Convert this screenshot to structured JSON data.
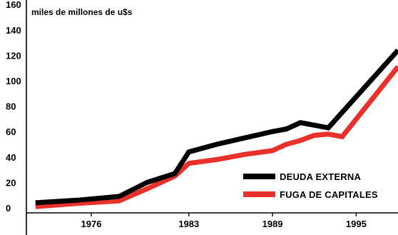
{
  "chart_data": {
    "type": "line",
    "title": "",
    "ylabel": "miles de millones de u$s",
    "xlabel": "",
    "ylim": [
      0,
      160
    ],
    "xlim": [
      1971.5,
      1998
    ],
    "y_ticks": [
      0,
      20,
      40,
      60,
      80,
      100,
      120,
      140,
      160
    ],
    "x_ticks": [
      1976,
      1983,
      1989,
      1995
    ],
    "grid": false,
    "legend_position": "bottom-right",
    "series": [
      {
        "name": "DEUDA EXTERNA",
        "color": "#000000",
        "points": [
          {
            "x": 1972,
            "y": 4
          },
          {
            "x": 1975,
            "y": 6
          },
          {
            "x": 1978,
            "y": 9
          },
          {
            "x": 1980,
            "y": 20
          },
          {
            "x": 1982,
            "y": 27
          },
          {
            "x": 1983,
            "y": 44
          },
          {
            "x": 1985,
            "y": 50
          },
          {
            "x": 1987,
            "y": 55
          },
          {
            "x": 1989,
            "y": 60
          },
          {
            "x": 1990,
            "y": 62
          },
          {
            "x": 1991,
            "y": 67
          },
          {
            "x": 1993,
            "y": 63
          },
          {
            "x": 1998,
            "y": 124
          }
        ]
      },
      {
        "name": "FUGA DE CAPITALES",
        "color": "#e8312a",
        "points": [
          {
            "x": 1972,
            "y": 1
          },
          {
            "x": 1975,
            "y": 3.5
          },
          {
            "x": 1978,
            "y": 5.5
          },
          {
            "x": 1980,
            "y": 15
          },
          {
            "x": 1982,
            "y": 25
          },
          {
            "x": 1983,
            "y": 35
          },
          {
            "x": 1985,
            "y": 38
          },
          {
            "x": 1987,
            "y": 42
          },
          {
            "x": 1989,
            "y": 45
          },
          {
            "x": 1990,
            "y": 50
          },
          {
            "x": 1991,
            "y": 53
          },
          {
            "x": 1992,
            "y": 57
          },
          {
            "x": 1993,
            "y": 58
          },
          {
            "x": 1994,
            "y": 56
          },
          {
            "x": 1998,
            "y": 111
          }
        ]
      }
    ]
  }
}
